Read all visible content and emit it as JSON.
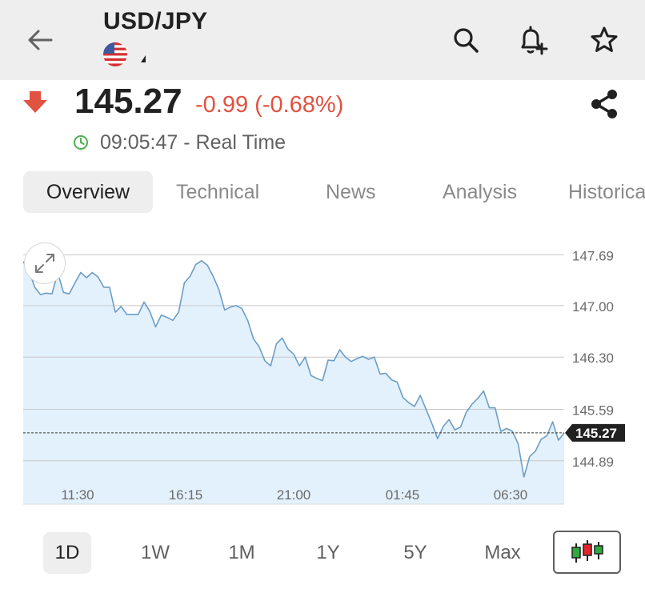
{
  "header": {
    "title": "USD/JPY",
    "back_icon": "arrow-left-icon",
    "flag_icon": "us-flag-icon",
    "actions": [
      "search-icon",
      "add-alert-icon",
      "star-icon"
    ]
  },
  "quote": {
    "price": "145.27",
    "change": "-0.99 (-0.68%)",
    "time": "09:05:47 - Real Time",
    "direction_icon": "down-arrow-icon",
    "colors": {
      "down": "#e15241",
      "clock": "#4caf50"
    }
  },
  "tabs": [
    {
      "label": "Overview",
      "active": true
    },
    {
      "label": "Technical",
      "active": false
    },
    {
      "label": "News",
      "active": false
    },
    {
      "label": "Analysis",
      "active": false
    },
    {
      "label": "Historical Data",
      "active": false
    }
  ],
  "chart_data": {
    "type": "area",
    "x_tick_labels": [
      "11:30",
      "16:15",
      "21:00",
      "01:45",
      "06:30"
    ],
    "y_tick_labels": [
      "147.69",
      "147.00",
      "146.30",
      "145.59",
      "144.89"
    ],
    "ylim": [
      144.3,
      148.0
    ],
    "current_value_label": "145.27",
    "current_value": 145.27,
    "colors": {
      "line": "#6c9dc6",
      "fill": "#e3f1fc",
      "grid": "#c8c8c8",
      "label_bg": "#212121"
    },
    "y_values": [
      147.6,
      147.48,
      147.25,
      147.15,
      147.17,
      147.16,
      147.45,
      147.18,
      147.16,
      147.31,
      147.45,
      147.38,
      147.45,
      147.39,
      147.25,
      147.25,
      146.91,
      146.99,
      146.88,
      146.88,
      146.88,
      147.05,
      146.92,
      146.71,
      146.87,
      146.84,
      146.8,
      146.91,
      147.31,
      147.4,
      147.56,
      147.61,
      147.55,
      147.4,
      147.22,
      146.94,
      146.98,
      147.0,
      146.96,
      146.8,
      146.55,
      146.44,
      146.25,
      146.18,
      146.48,
      146.56,
      146.41,
      146.34,
      146.18,
      146.3,
      146.05,
      146.01,
      145.98,
      146.26,
      146.25,
      146.4,
      146.3,
      146.24,
      146.28,
      146.31,
      146.27,
      146.3,
      146.07,
      146.08,
      145.99,
      145.96,
      145.75,
      145.68,
      145.63,
      145.78,
      145.59,
      145.4,
      145.19,
      145.36,
      145.45,
      145.31,
      145.35,
      145.55,
      145.66,
      145.74,
      145.84,
      145.61,
      145.61,
      145.29,
      145.33,
      145.29,
      145.12,
      144.67,
      144.95,
      145.02,
      145.18,
      145.23,
      145.42,
      145.17,
      145.27
    ]
  },
  "ranges": [
    {
      "label": "1D",
      "active": true
    },
    {
      "label": "1W",
      "active": false
    },
    {
      "label": "1M",
      "active": false
    },
    {
      "label": "1Y",
      "active": false
    },
    {
      "label": "5Y",
      "active": false
    },
    {
      "label": "Max",
      "active": false
    }
  ],
  "chart_type_icon": "candlestick-chart-icon",
  "expand_icon": "expand-icon",
  "share_icon": "share-icon",
  "clock_icon": "clock-icon"
}
